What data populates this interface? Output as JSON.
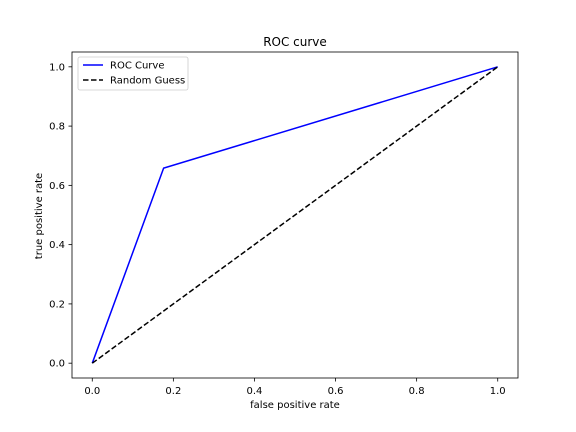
{
  "chart_data": {
    "type": "line",
    "title": "ROC curve",
    "xlabel": "false positive rate",
    "ylabel": "true positive rate",
    "xlim": [
      -0.05,
      1.05
    ],
    "ylim": [
      -0.05,
      1.05
    ],
    "xticks": [
      0.0,
      0.2,
      0.4,
      0.6,
      0.8,
      1.0
    ],
    "xtick_labels": [
      "0.0",
      "0.2",
      "0.4",
      "0.6",
      "0.8",
      "1.0"
    ],
    "yticks": [
      0.0,
      0.2,
      0.4,
      0.6,
      0.8,
      1.0
    ],
    "ytick_labels": [
      "0.0",
      "0.2",
      "0.4",
      "0.6",
      "0.8",
      "1.0"
    ],
    "grid": false,
    "legend_position": "top-left",
    "series": [
      {
        "name": "ROC Curve",
        "color": "#0000ff",
        "style": "solid",
        "x": [
          0.0,
          0.176,
          1.0
        ],
        "y": [
          0.0,
          0.658,
          1.0
        ]
      },
      {
        "name": "Random Guess",
        "color": "#000000",
        "style": "dashed",
        "x": [
          0.0,
          1.0
        ],
        "y": [
          0.0,
          1.0
        ]
      }
    ]
  }
}
